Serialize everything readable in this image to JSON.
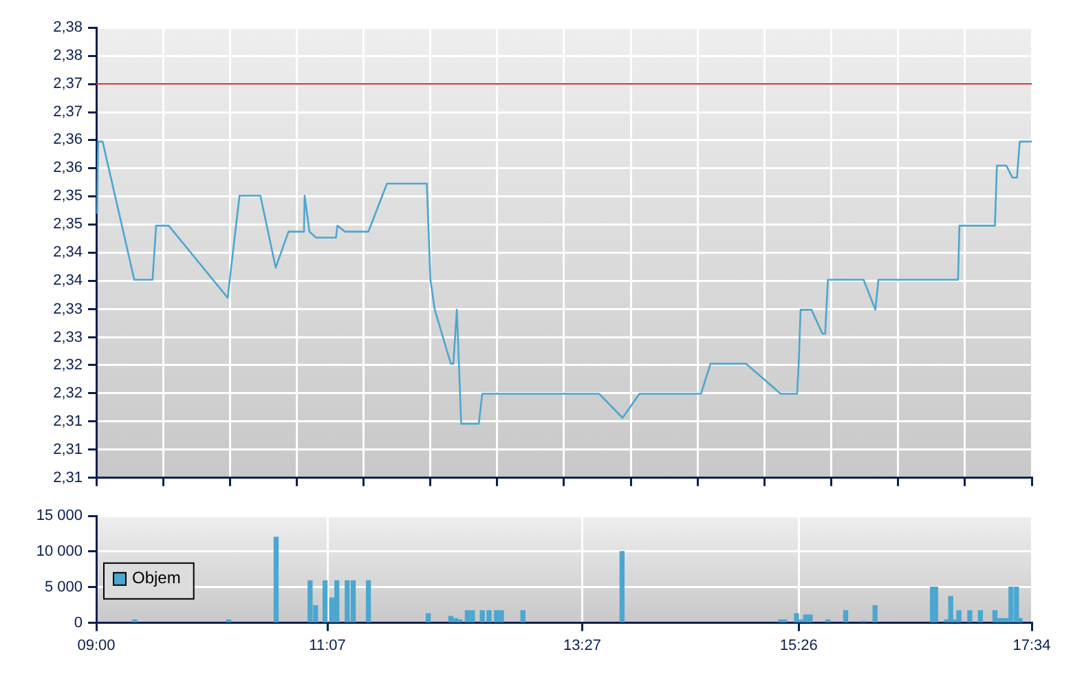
{
  "chart_data": [
    {
      "type": "line",
      "tick_labels": "y",
      "grid": true,
      "xlim": [
        9,
        17.567
      ],
      "xticks": [
        {
          "value": 9,
          "label": null
        },
        {
          "value": 9.612,
          "label": null
        },
        {
          "value": 10.224,
          "label": null
        },
        {
          "value": 10.836,
          "label": null
        },
        {
          "value": 11.448,
          "label": null
        },
        {
          "value": 12.06,
          "label": null
        },
        {
          "value": 12.671,
          "label": null
        },
        {
          "value": 13.283,
          "label": null
        },
        {
          "value": 13.895,
          "label": null
        },
        {
          "value": 14.507,
          "label": null
        },
        {
          "value": 15.119,
          "label": null
        },
        {
          "value": 15.731,
          "label": null
        },
        {
          "value": 16.343,
          "label": null
        },
        {
          "value": 16.955,
          "label": null
        },
        {
          "value": 17.567,
          "label": null
        }
      ],
      "ylim": [
        2.305,
        2.38
      ],
      "yticks": [
        {
          "value": 2.305,
          "label": "2,31"
        },
        {
          "value": 2.3097,
          "label": "2,31"
        },
        {
          "value": 2.3144,
          "label": "2,31"
        },
        {
          "value": 2.3191,
          "label": "2,32"
        },
        {
          "value": 2.3238,
          "label": "2,32"
        },
        {
          "value": 2.3284,
          "label": "2,33"
        },
        {
          "value": 2.3331,
          "label": "2,33"
        },
        {
          "value": 2.3378,
          "label": "2,34"
        },
        {
          "value": 2.3425,
          "label": "2,34"
        },
        {
          "value": 2.3472,
          "label": "2,35"
        },
        {
          "value": 2.3519,
          "label": "2,35"
        },
        {
          "value": 2.3566,
          "label": "2,36"
        },
        {
          "value": 2.3613,
          "label": "2,36"
        },
        {
          "value": 2.3659,
          "label": "2,37"
        },
        {
          "value": 2.3706,
          "label": "2,37"
        },
        {
          "value": 2.3753,
          "label": "2,38"
        },
        {
          "value": 2.38,
          "label": "2,38"
        }
      ],
      "ref_lines": [
        {
          "axis": "y",
          "value": 2.3706,
          "color": "#cc3333"
        }
      ],
      "series": [
        {
          "color": "#4ba6d0",
          "x": [
            9.008,
            9.017,
            9.058,
            9.348,
            9.515,
            9.548,
            9.663,
            10.203,
            10.312,
            10.503,
            10.643,
            10.76,
            10.902,
            10.908,
            10.952,
            11.013,
            11.195,
            11.208,
            11.277,
            11.492,
            11.662,
            12.027,
            12.06,
            12.1,
            12.247,
            12.27,
            12.302,
            12.342,
            12.503,
            12.535,
            13.605,
            13.82,
            13.975,
            14.538,
            14.625,
            14.952,
            15.267,
            15.418,
            15.433,
            15.45,
            15.55,
            15.65,
            15.675,
            15.7,
            16.027,
            16.135,
            16.163,
            16.892,
            16.905,
            17.23,
            17.248,
            17.335,
            17.39,
            17.432,
            17.457,
            17.567
          ],
          "values": [
            2.349,
            2.361,
            2.361,
            2.338,
            2.338,
            2.347,
            2.347,
            2.335,
            2.352,
            2.352,
            2.34,
            2.346,
            2.346,
            2.352,
            2.346,
            2.345,
            2.345,
            2.347,
            2.346,
            2.346,
            2.354,
            2.354,
            2.338,
            2.333,
            2.324,
            2.324,
            2.333,
            2.314,
            2.314,
            2.319,
            2.319,
            2.315,
            2.319,
            2.319,
            2.324,
            2.324,
            2.319,
            2.319,
            2.324,
            2.333,
            2.333,
            2.329,
            2.329,
            2.338,
            2.338,
            2.333,
            2.338,
            2.338,
            2.347,
            2.347,
            2.357,
            2.357,
            2.355,
            2.355,
            2.361,
            2.361
          ]
        }
      ]
    },
    {
      "type": "bar",
      "grid": true,
      "legend": "left",
      "xlim": [
        9,
        17.567
      ],
      "xticks": [
        {
          "value": 9,
          "label": "09:00"
        },
        {
          "value": 11.117,
          "label": "11:07"
        },
        {
          "value": 13.45,
          "label": "13:27"
        },
        {
          "value": 15.433,
          "label": "15:26"
        },
        {
          "value": 17.567,
          "label": "17:34"
        }
      ],
      "ylim": [
        0,
        15000
      ],
      "yticks": [
        0,
        {
          "value": 5000,
          "label": "5 000"
        },
        {
          "value": 10000,
          "label": "10 000"
        },
        {
          "value": 15000,
          "label": "15 000"
        }
      ],
      "series": [
        {
          "name": "Objem",
          "color": "#4ba6d0",
          "x": [
            9.352,
            10.212,
            10.647,
            10.958,
            11.008,
            11.095,
            11.158,
            11.203,
            11.298,
            11.353,
            11.492,
            12.04,
            12.247,
            12.293,
            12.33,
            12.398,
            12.445,
            12.535,
            12.597,
            12.665,
            12.71,
            12.907,
            13.815,
            15.267,
            15.305,
            15.413,
            15.45,
            15.497,
            15.538,
            15.7,
            15.863,
            16.027,
            16.132,
            16.658,
            16.687,
            16.787,
            16.825,
            16.862,
            16.9,
            17.0,
            17.097,
            17.23,
            17.272,
            17.305,
            17.338,
            17.377,
            17.427,
            17.46
          ],
          "values": [
            400,
            400,
            12000,
            5900,
            2400,
            5900,
            3500,
            5900,
            5900,
            5900,
            5900,
            1300,
            900,
            600,
            400,
            1700,
            1700,
            1700,
            1700,
            1700,
            1700,
            1700,
            10000,
            400,
            400,
            1300,
            400,
            1100,
            1100,
            400,
            1700,
            200,
            2400,
            5000,
            5000,
            400,
            3700,
            400,
            1700,
            1700,
            1700,
            1700,
            600,
            600,
            600,
            5000,
            5000,
            600
          ]
        }
      ]
    }
  ]
}
